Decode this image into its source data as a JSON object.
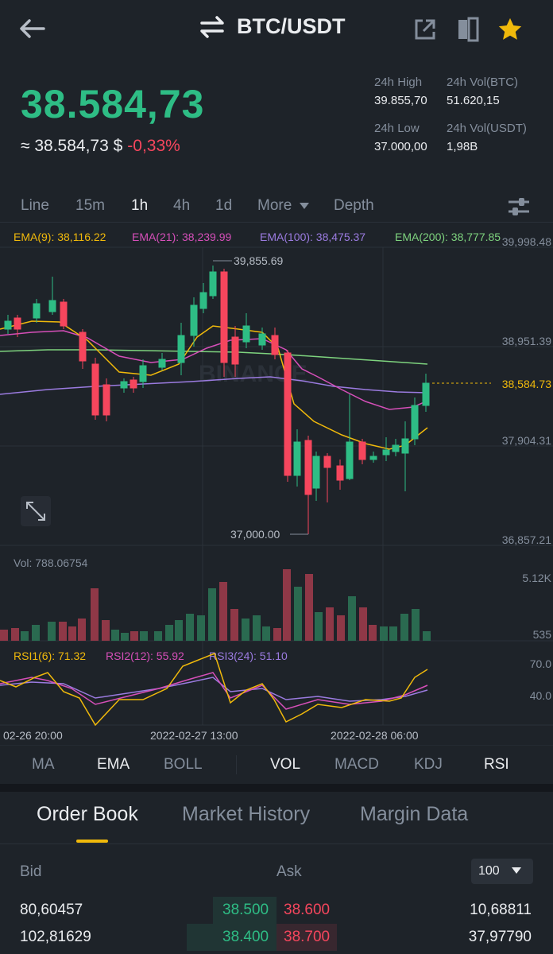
{
  "header": {
    "pair": "BTC/USDT",
    "icons": [
      "back-arrow-icon",
      "swap-icon",
      "share-icon",
      "book-icon",
      "star-icon"
    ]
  },
  "price": {
    "last": "38.584,73",
    "approx": "≈ 38.584,73 $",
    "change": "-0,33%"
  },
  "stats": {
    "high_label": "24h High",
    "high_value": "39.855,70",
    "vol_btc_label": "24h Vol(BTC)",
    "vol_btc_value": "51.620,15",
    "low_label": "24h Low",
    "low_value": "37.000,00",
    "vol_usdt_label": "24h Vol(USDT)",
    "vol_usdt_value": "1,98B"
  },
  "timeframes": [
    "Line",
    "15m",
    "1h",
    "4h",
    "1d",
    "More",
    "Depth"
  ],
  "active_timeframe": "1h",
  "ema": {
    "ema9": "EMA(9): 38,116.22",
    "ema21": "EMA(21): 38,239.99",
    "ema100": "EMA(100): 38,475.37",
    "ema200": "EMA(200): 38,777.85"
  },
  "price_axis": [
    "39,998.48",
    "38,951.39",
    "37,904.31",
    "36,857.21"
  ],
  "current_price_tag": "38,584.73",
  "high_marker": "39,855.69",
  "low_marker": "37,000.00",
  "watermark": "BINANCE",
  "volume": {
    "label": "Vol: 788.06754",
    "axis_top": "5.12K",
    "axis_bottom": "535"
  },
  "rsi": {
    "rsi1": "RSI1(6): 71.32",
    "rsi2": "RSI2(12): 55.92",
    "rsi3": "RSI3(24): 51.10",
    "axis_top": "70.0",
    "axis_bottom": "40.0"
  },
  "time_axis": [
    "02-26 20:00",
    "2022-02-27 13:00",
    "2022-02-28 06:00"
  ],
  "indicators": {
    "main": [
      "MA",
      "EMA",
      "BOLL"
    ],
    "sub": [
      "VOL",
      "MACD",
      "KDJ",
      "RSI"
    ]
  },
  "orderbook_tabs": [
    "Order Book",
    "Market History",
    "Margin Data"
  ],
  "orderbook": {
    "bid_label": "Bid",
    "ask_label": "Ask",
    "depth": "100",
    "rows": [
      {
        "bid_qty": "80,60457",
        "bid_price": "38.500",
        "ask_price": "38.600",
        "ask_qty": "10,68811"
      },
      {
        "bid_qty": "102,81629",
        "bid_price": "38.400",
        "ask_price": "38.700",
        "ask_qty": "37,97790"
      }
    ]
  },
  "colors": {
    "up": "#2ebd85",
    "down": "#f6465d",
    "accent": "#f0b90b",
    "ema9": "#f0b90b",
    "ema21": "#d64fb9",
    "ema100": "#9b7be0",
    "ema200": "#7ed37e"
  }
}
